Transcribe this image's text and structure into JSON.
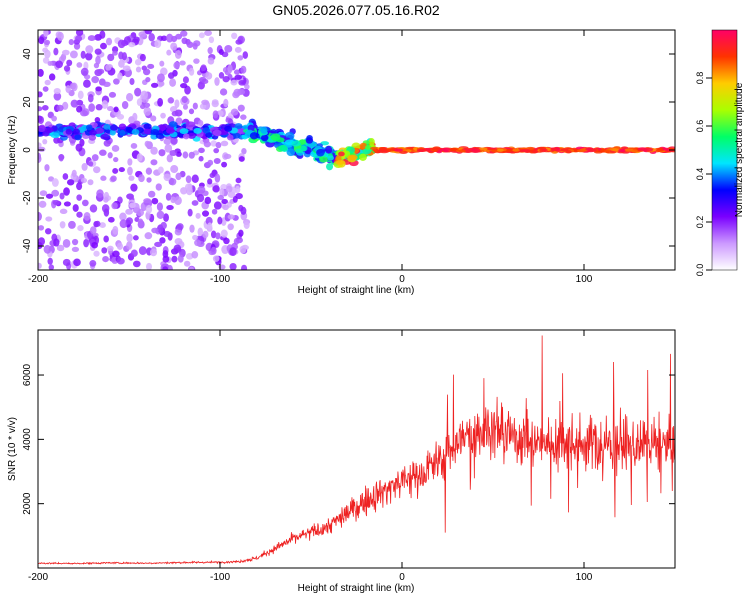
{
  "title": "GN05.2026.077.05.16.R02",
  "chart_data": [
    {
      "type": "heatmap",
      "xlabel": "Height of straight line (km)",
      "ylabel": "Frequency (Hz)",
      "xlim": [
        -200,
        150
      ],
      "ylim": [
        -50,
        50
      ],
      "x_ticks": [
        -200,
        -100,
        0,
        100
      ],
      "y_ticks": [
        -40,
        -20,
        0,
        20,
        40
      ],
      "colorbar": {
        "label": "Normalized spectral amplitude",
        "range": [
          0,
          1
        ],
        "ticks": [
          "0.0",
          "0.2",
          "0.4",
          "0.6",
          "0.8"
        ],
        "colors": [
          "#ffffff",
          "#cc99ff",
          "#7a00ff",
          "#0000ff",
          "#00e5ff",
          "#00ff66",
          "#aaff00",
          "#ffcc00",
          "#ff3300",
          "#ff0066"
        ]
      },
      "features": [
        {
          "x_range": [
            -200,
            -85
          ],
          "freq_spread": [
            -50,
            50
          ],
          "amplitude": 0.15,
          "description": "broadband noise"
        },
        {
          "x_range": [
            -200,
            -85
          ],
          "center_freq": 8,
          "amplitude": 0.3
        },
        {
          "x_range": [
            -85,
            -35
          ],
          "center_freq_start": 8,
          "center_freq_end": -3,
          "amplitude": 0.45
        },
        {
          "x_range": [
            -35,
            -15
          ],
          "center_freq_start": -3,
          "center_freq_end": 1,
          "amplitude": 0.75
        },
        {
          "x_range": [
            -15,
            150
          ],
          "center_freq": 0,
          "amplitude": 0.95
        }
      ]
    },
    {
      "type": "line",
      "xlabel": "Height of straight line (km)",
      "ylabel": "SNR (10 * v/v)",
      "xlim": [
        -200,
        150
      ],
      "ylim": [
        0,
        7400
      ],
      "x_ticks": [
        -200,
        -100,
        0,
        100
      ],
      "y_ticks": [
        2000,
        4000,
        6000
      ],
      "series": [
        {
          "name": "SNR",
          "color": "#ee2222",
          "x": [
            -200,
            -180,
            -160,
            -140,
            -120,
            -100,
            -90,
            -80,
            -70,
            -60,
            -50,
            -40,
            -30,
            -20,
            -10,
            0,
            10,
            20,
            30,
            40,
            50,
            60,
            70,
            80,
            90,
            100,
            110,
            120,
            130,
            140,
            150
          ],
          "y": [
            150,
            140,
            160,
            150,
            170,
            180,
            200,
            300,
            600,
            900,
            1100,
            1300,
            1700,
            2100,
            2400,
            2700,
            2900,
            3300,
            3900,
            4200,
            4400,
            4100,
            4000,
            3900,
            4000,
            3900,
            3800,
            3900,
            3700,
            3800,
            3700
          ]
        }
      ]
    }
  ]
}
